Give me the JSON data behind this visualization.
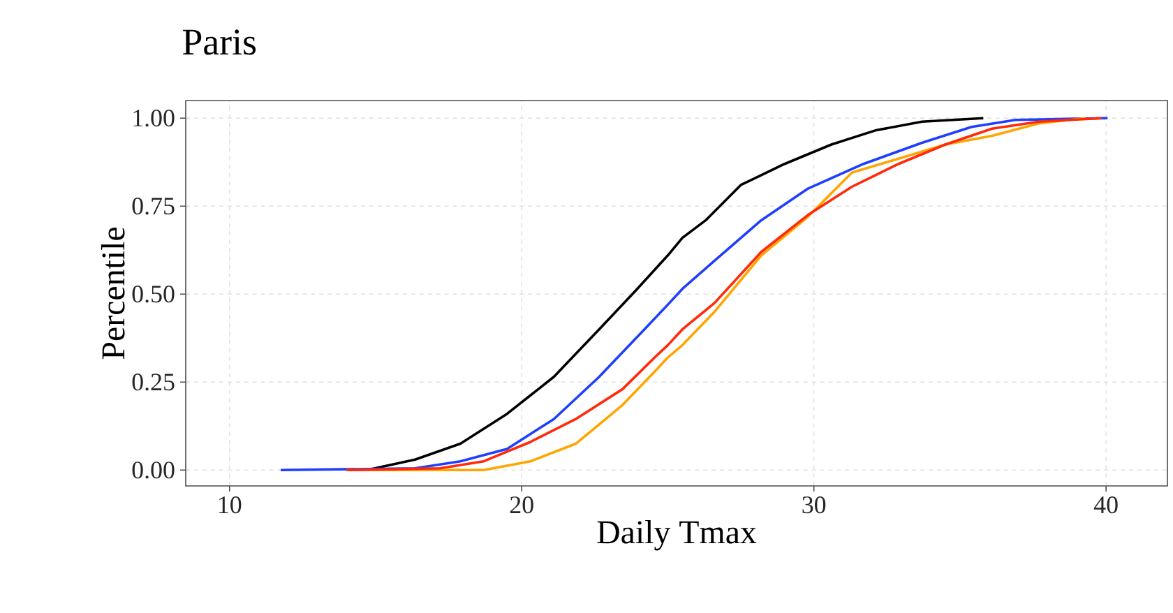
{
  "chart_data": {
    "type": "line",
    "title": "Paris",
    "xlabel": "Daily Tmax",
    "ylabel": "Percentile",
    "xlim": [
      8.5,
      42.1
    ],
    "ylim": [
      -0.045,
      1.05
    ],
    "xticks": [
      10,
      20,
      30,
      40
    ],
    "yticks": [
      {
        "value": 0,
        "label": "0.00"
      },
      {
        "value": 0.25,
        "label": "0.25"
      },
      {
        "value": 0.5,
        "label": "0.50"
      },
      {
        "value": 0.75,
        "label": "0.75"
      },
      {
        "value": 1,
        "label": "1.00"
      }
    ],
    "grid": true,
    "line_style": "solid",
    "marker": "none",
    "series": [
      {
        "color": "#000000",
        "x": [
          14.7,
          16.35,
          17.9,
          19.5,
          21.1,
          22.65,
          23.9,
          25.0,
          25.5,
          26.3,
          27.5,
          29.0,
          30.6,
          32.1,
          33.7,
          35.8
        ],
        "values": [
          0,
          0.03,
          0.075,
          0.16,
          0.265,
          0.4,
          0.51,
          0.61,
          0.66,
          0.71,
          0.81,
          0.87,
          0.925,
          0.965,
          0.99,
          1.0
        ]
      },
      {
        "color": "#1f3fff",
        "x": [
          11.75,
          16.35,
          17.9,
          19.5,
          21.1,
          22.65,
          24.2,
          25.0,
          25.5,
          26.6,
          28.2,
          29.8,
          31.7,
          33.7,
          35.4,
          36.9,
          40.05
        ],
        "values": [
          0,
          0.005,
          0.025,
          0.06,
          0.145,
          0.265,
          0.4,
          0.47,
          0.515,
          0.595,
          0.71,
          0.8,
          0.87,
          0.93,
          0.975,
          0.995,
          1.0
        ]
      },
      {
        "color": "#ffa500",
        "x": [
          14.0,
          18.7,
          20.3,
          21.85,
          23.45,
          24.55,
          25.0,
          25.5,
          26.6,
          28.2,
          29.8,
          31.3,
          32.9,
          34.5,
          36.1,
          37.7,
          39.3
        ],
        "values": [
          0,
          0,
          0.025,
          0.075,
          0.185,
          0.28,
          0.32,
          0.355,
          0.45,
          0.61,
          0.72,
          0.845,
          0.885,
          0.925,
          0.95,
          0.985,
          1.0
        ]
      },
      {
        "color": "#ff2a0a",
        "x": [
          14.0,
          17.2,
          18.7,
          20.3,
          21.85,
          23.45,
          24.55,
          25.0,
          25.5,
          26.6,
          28.2,
          29.8,
          31.3,
          32.9,
          34.5,
          36.1,
          37.7,
          39.85
        ],
        "values": [
          0,
          0.005,
          0.025,
          0.08,
          0.145,
          0.23,
          0.32,
          0.355,
          0.4,
          0.475,
          0.62,
          0.725,
          0.805,
          0.87,
          0.925,
          0.97,
          0.99,
          1.0
        ]
      }
    ]
  }
}
